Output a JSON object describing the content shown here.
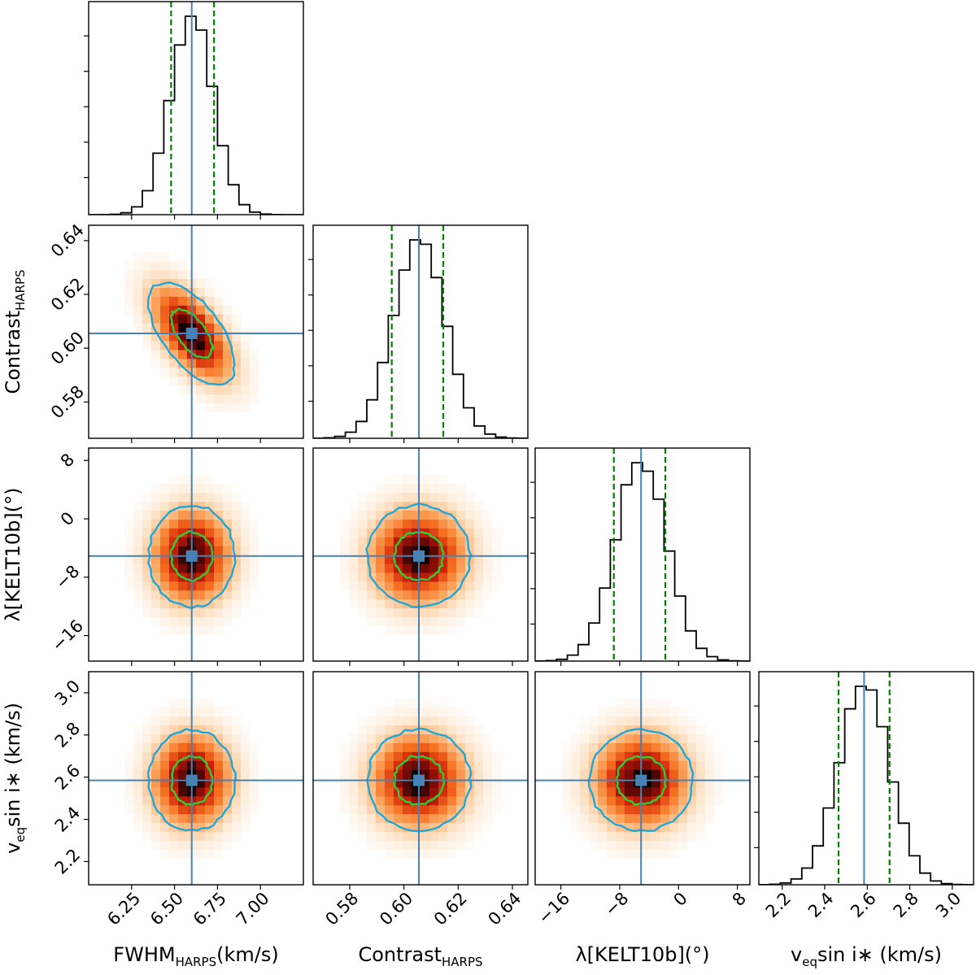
{
  "chart_data": {
    "type": "corner",
    "params": [
      {
        "key": "fwhm",
        "label": "FWHM",
        "sub": "HARPS",
        "suffix": "(km/s)",
        "range": [
          6.0,
          7.25
        ],
        "ticks": [
          6.25,
          6.5,
          6.75,
          7.0
        ],
        "tick_labels": [
          "6.25",
          "6.50",
          "6.75",
          "7.00"
        ],
        "median": 6.6,
        "q16": 6.48,
        "q84": 6.73
      },
      {
        "key": "contrast",
        "label": "Contrast",
        "sub": "HARPS",
        "suffix": "",
        "range": [
          0.5665,
          0.6457
        ],
        "ticks": [
          0.58,
          0.6,
          0.62,
          0.64
        ],
        "tick_labels": [
          "0.58",
          "0.60",
          "0.62",
          "0.64"
        ],
        "median": 0.6055,
        "q16": 0.5955,
        "q84": 0.6145
      },
      {
        "key": "lambda",
        "label": "λ[KELT10b](°)",
        "sub": "",
        "suffix": "",
        "range": [
          -19.5,
          9.7
        ],
        "ticks": [
          -16,
          -8,
          0,
          8
        ],
        "tick_labels": [
          "−16",
          "−8",
          "0",
          "8"
        ],
        "median": -5.1,
        "q16": -8.8,
        "q84": -1.8
      },
      {
        "key": "vsini",
        "label": "v",
        "sub": "eq",
        "suffix": "sin i∗ (km/s)",
        "range": [
          2.09,
          3.1
        ],
        "ticks": [
          2.2,
          2.4,
          2.6,
          2.8,
          3.0
        ],
        "tick_labels": [
          "2.2",
          "2.4",
          "2.6",
          "2.8",
          "3.0"
        ],
        "median": 2.585,
        "q16": 2.465,
        "q84": 2.705
      }
    ],
    "correlations": [
      {
        "pair": [
          "fwhm",
          "contrast"
        ],
        "rho": -0.6
      },
      {
        "pair": [
          "fwhm",
          "lambda"
        ],
        "rho": 0
      },
      {
        "pair": [
          "contrast",
          "lambda"
        ],
        "rho": 0
      },
      {
        "pair": [
          "fwhm",
          "vsini"
        ],
        "rho": 0
      },
      {
        "pair": [
          "contrast",
          "vsini"
        ],
        "rho": 0
      },
      {
        "pair": [
          "lambda",
          "vsini"
        ],
        "rho": 0
      }
    ],
    "histogram_bins": 20,
    "contour_levels_sigma": [
      1,
      2
    ],
    "colors": {
      "hist_line": "#000000",
      "median_line": "#4682b4",
      "quantile_line": "#008000",
      "inner_contour": "#32cd32",
      "outer_contour": "#1ea7d9",
      "marker": "#4682b4"
    }
  }
}
